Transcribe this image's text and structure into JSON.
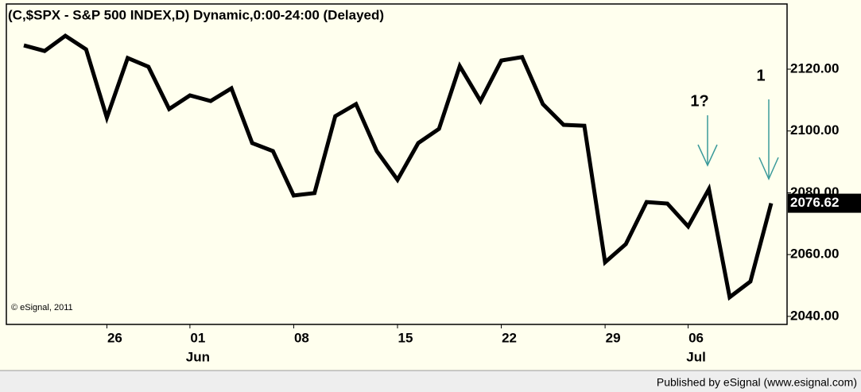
{
  "chart_data": {
    "type": "line",
    "title": "(C,$SPX - S&P 500 INDEX,D) Dynamic,0:00-24:00 (Delayed)",
    "copyright": "© eSignal, 2011",
    "footer": "Published by eSignal (www.esignal.com)",
    "categories": [
      null,
      null,
      null,
      null,
      "26",
      null,
      null,
      null,
      "01",
      null,
      null,
      null,
      null,
      "08",
      null,
      null,
      null,
      null,
      "15",
      null,
      null,
      null,
      null,
      "22",
      null,
      null,
      null,
      null,
      "29",
      null,
      null,
      null,
      "06",
      null,
      null,
      null,
      null
    ],
    "category_groups": [
      null,
      null,
      null,
      null,
      null,
      null,
      null,
      null,
      "Jun",
      null,
      null,
      null,
      null,
      null,
      null,
      null,
      null,
      null,
      null,
      null,
      null,
      null,
      null,
      null,
      null,
      null,
      null,
      null,
      null,
      null,
      null,
      null,
      "Jul",
      null,
      null,
      null,
      null
    ],
    "series": [
      {
        "name": "$SPX",
        "color": "#000000",
        "values": [
          2127.7,
          2125.9,
          2130.8,
          2126.4,
          2104.3,
          2123.6,
          2120.8,
          2107.1,
          2111.5,
          2109.7,
          2113.8,
          2096.1,
          2093.5,
          2079.1,
          2079.9,
          2104.8,
          2108.7,
          2093.5,
          2084.2,
          2096.1,
          2100.7,
          2121.0,
          2109.7,
          2122.8,
          2123.9,
          2108.7,
          2102.0,
          2101.7,
          2057.5,
          2063.4,
          2077.0,
          2076.5,
          2069.1,
          2081.2,
          2046.2,
          2051.3,
          2076.62
        ]
      }
    ],
    "ylim": [
      2037.4,
      2141.1
    ],
    "yticks": [
      {
        "value": 2040,
        "label": "2040.00"
      },
      {
        "value": 2060,
        "label": "2060.00"
      },
      {
        "value": 2080,
        "label": "2080.00"
      },
      {
        "value": 2100,
        "label": "2100.00"
      },
      {
        "value": 2120,
        "label": "2120.00"
      }
    ],
    "grid": false,
    "annotations": [
      {
        "text": "1?"
      },
      {
        "text": "1"
      }
    ],
    "annotation_color": "#3a9a9a"
  }
}
